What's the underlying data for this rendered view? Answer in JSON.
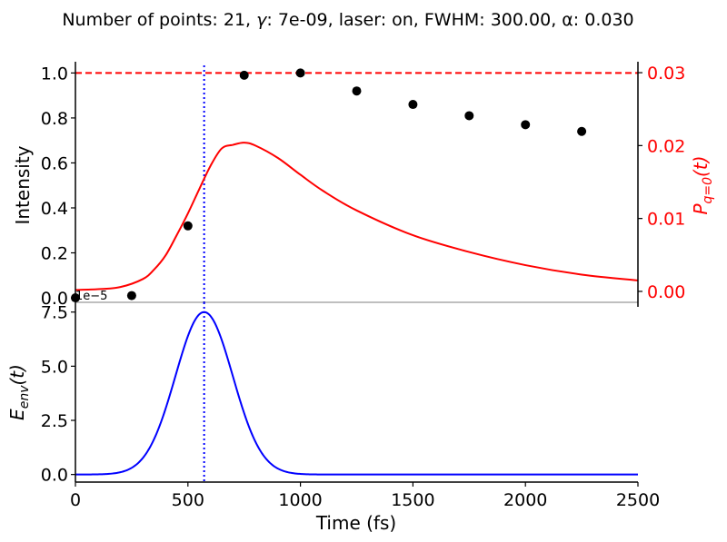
{
  "figure": {
    "title_parts": [
      "Number of points: 21, ",
      "γ",
      ": 7e-09, laser: on, FWHM: 300.00, α: 0.030"
    ]
  },
  "chart_data": [
    {
      "type": "scatter",
      "panel": "top",
      "xlim": [
        0,
        2500
      ],
      "ylim": [
        -0.02,
        1.05
      ],
      "ylabel": "Intensity",
      "yticks": [
        "0.0",
        "0.2",
        "0.4",
        "0.6",
        "0.8",
        "1.0"
      ],
      "y_tick_values": [
        0,
        0.2,
        0.4,
        0.6,
        0.8,
        1.0
      ],
      "grid": false,
      "points": {
        "color": "#000000",
        "x": [
          0,
          250,
          500,
          750,
          1000,
          1250,
          1500,
          1750,
          2000,
          2250
        ],
        "y": [
          0.0,
          0.01,
          0.32,
          0.99,
          1.0,
          0.92,
          0.86,
          0.81,
          0.77,
          0.74
        ]
      },
      "reference_line": {
        "y": 1.0,
        "style": "dashed",
        "color": "#ff0000"
      },
      "marker_line": {
        "x": 572,
        "style": "dotted",
        "color": "#0000ff"
      },
      "secondary_axis": {
        "ylabel_parts": [
          "P",
          "q=0",
          "(t)"
        ],
        "ylim": [
          -0.0015,
          0.0315
        ],
        "yticks": [
          "0.00",
          "0.01",
          "0.02",
          "0.03"
        ],
        "y_tick_values": [
          0,
          0.01,
          0.02,
          0.03
        ],
        "color": "#ff0000",
        "series": {
          "color": "#ff0000",
          "x": [
            0,
            100,
            200,
            300,
            350,
            400,
            450,
            500,
            550,
            600,
            650,
            700,
            750,
            800,
            900,
            1000,
            1100,
            1250,
            1500,
            1750,
            2000,
            2250,
            2500
          ],
          "y": [
            0.0002,
            0.0003,
            0.0006,
            0.0017,
            0.003,
            0.0049,
            0.0077,
            0.0107,
            0.014,
            0.0172,
            0.0196,
            0.0201,
            0.0204,
            0.02,
            0.0183,
            0.016,
            0.0138,
            0.0111,
            0.0077,
            0.0054,
            0.0036,
            0.0023,
            0.0015
          ]
        }
      }
    },
    {
      "type": "line",
      "panel": "bottom",
      "xlim": [
        0,
        2500
      ],
      "ylim": [
        -0.35,
        7.95
      ],
      "xlabel": "Time (fs)",
      "ylabel_parts": [
        "E",
        "env",
        "(t)"
      ],
      "y_scale_label": "1e−5",
      "xticks": [
        "0",
        "500",
        "1000",
        "1500",
        "2000",
        "2500"
      ],
      "x_tick_values": [
        0,
        500,
        1000,
        1500,
        2000,
        2500
      ],
      "yticks": [
        "0.0",
        "2.5",
        "5.0",
        "7.5"
      ],
      "y_tick_values": [
        0,
        2.5,
        5.0,
        7.5
      ],
      "grid": false,
      "marker_line": {
        "x": 572,
        "style": "dotted",
        "color": "#0000ff"
      },
      "series": [
        {
          "color": "#0000ff",
          "peak": 7.5,
          "center": 572,
          "fwhm": 300
        }
      ]
    }
  ]
}
